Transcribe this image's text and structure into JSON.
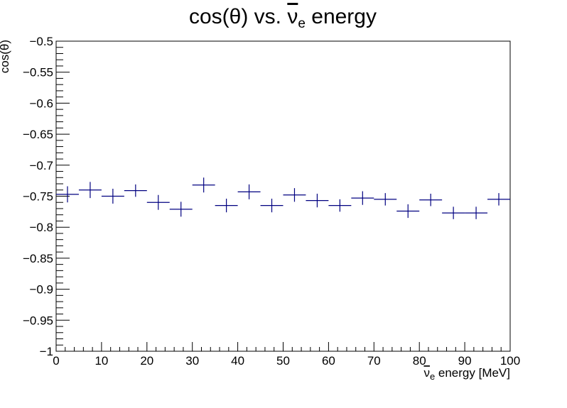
{
  "chart_data": {
    "type": "scatter",
    "title": "cos(θ) vs. ν̄e energy",
    "title_parts": {
      "prefix": "cos(θ) vs. ",
      "nu": "ν",
      "sub": "e",
      "suffix": " energy"
    },
    "xlabel": "ν̄e energy [MeV]",
    "xlabel_parts": {
      "nu": "ν",
      "sub": "e",
      "suffix": " energy [MeV]"
    },
    "ylabel": "cos(θ)",
    "xlim": [
      0,
      100
    ],
    "ylim": [
      -1,
      -0.5
    ],
    "x_ticks": [
      0,
      10,
      20,
      30,
      40,
      50,
      60,
      70,
      80,
      90,
      100
    ],
    "x_tick_labels": [
      "0",
      "10",
      "20",
      "30",
      "40",
      "50",
      "60",
      "70",
      "80",
      "90",
      "100"
    ],
    "y_ticks": [
      -1,
      -0.95,
      -0.9,
      -0.85,
      -0.8,
      -0.75,
      -0.7,
      -0.65,
      -0.6,
      -0.55,
      -0.5
    ],
    "y_tick_labels": [
      "−1",
      "−0.95",
      "−0.9",
      "−0.85",
      "−0.8",
      "−0.75",
      "−0.7",
      "−0.65",
      "−0.6",
      "−0.55",
      "−0.5"
    ],
    "grid": false,
    "legend": "none",
    "marker_color": "#000080",
    "series": [
      {
        "x": [
          2.5,
          7.5,
          12.5,
          17.5,
          22.5,
          27.5,
          32.5,
          37.5,
          42.5,
          47.5,
          52.5,
          57.5,
          62.5,
          67.5,
          72.5,
          77.5,
          82.5,
          87.5,
          92.5,
          97.5
        ],
        "x_err": [
          2.5,
          2.5,
          2.5,
          2.5,
          2.5,
          2.5,
          2.5,
          2.5,
          2.5,
          2.5,
          2.5,
          2.5,
          2.5,
          2.5,
          2.5,
          2.5,
          2.5,
          2.5,
          2.5,
          2.5
        ],
        "y": [
          -0.747,
          -0.74,
          -0.75,
          -0.741,
          -0.76,
          -0.771,
          -0.732,
          -0.765,
          -0.743,
          -0.765,
          -0.748,
          -0.757,
          -0.765,
          -0.753,
          -0.755,
          -0.774,
          -0.756,
          -0.777,
          -0.777,
          -0.755
        ],
        "y_err": [
          0.013,
          0.013,
          0.012,
          0.01,
          0.012,
          0.012,
          0.012,
          0.011,
          0.012,
          0.011,
          0.011,
          0.011,
          0.01,
          0.011,
          0.01,
          0.011,
          0.01,
          0.01,
          0.01,
          0.01
        ]
      }
    ]
  }
}
